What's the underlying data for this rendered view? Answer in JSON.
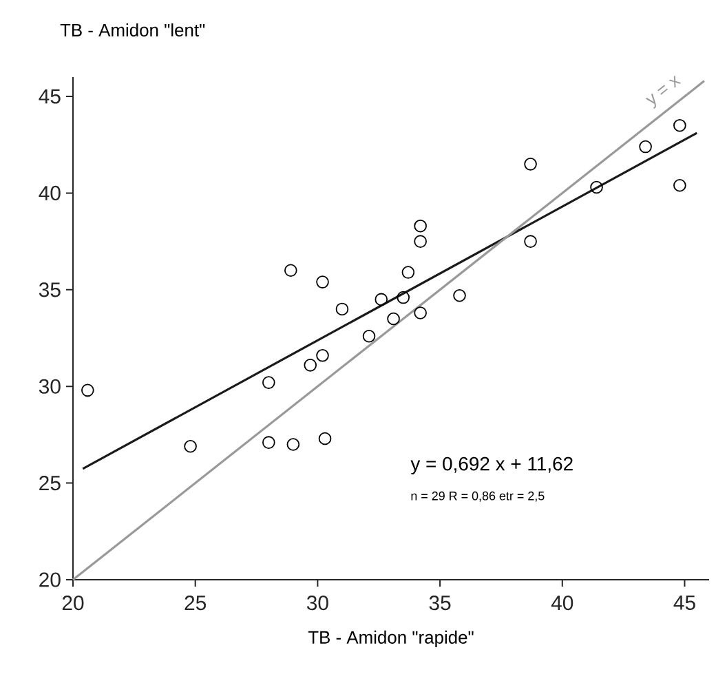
{
  "chart_data": {
    "type": "scatter",
    "xlabel": "TB - Amidon \"rapide\"",
    "ylabel": "TB - Amidon \"lent\"",
    "xlim": [
      20,
      46
    ],
    "ylim": [
      20,
      46
    ],
    "xticks": [
      20,
      25,
      30,
      35,
      40,
      45
    ],
    "yticks": [
      20,
      25,
      30,
      35,
      40,
      45
    ],
    "grid": false,
    "series": [
      {
        "marker": "circle",
        "color": "#000000",
        "x": [
          20.6,
          24.8,
          28.0,
          28.0,
          29.0,
          30.3,
          29.7,
          30.2,
          28.9,
          30.2,
          31.0,
          32.1,
          32.6,
          33.1,
          33.5,
          33.7,
          34.2,
          34.2,
          34.2,
          35.8,
          38.7,
          38.7,
          41.4,
          43.4,
          44.8,
          44.8
        ],
        "values": [
          29.8,
          26.9,
          30.2,
          27.1,
          27.0,
          27.3,
          31.1,
          31.6,
          36.0,
          35.4,
          34.0,
          32.6,
          34.5,
          33.5,
          34.6,
          35.9,
          33.8,
          37.5,
          38.3,
          34.7,
          37.5,
          41.5,
          40.3,
          42.4,
          43.5,
          40.4
        ]
      },
      {
        "type": "line",
        "marker": "none",
        "line_style": "solid",
        "color": "#1a1a1a",
        "x": [
          20.4,
          45.5
        ],
        "values": [
          25.74,
          43.11
        ]
      },
      {
        "type": "line",
        "marker": "none",
        "line_style": "solid",
        "color": "#999999",
        "x": [
          20,
          45.8
        ],
        "values": [
          20,
          45.8
        ]
      }
    ],
    "annotations": [
      "y = x",
      "y = 0,692 x  +  11,62",
      "n = 29   R = 0,86   etr = 2,5"
    ]
  }
}
